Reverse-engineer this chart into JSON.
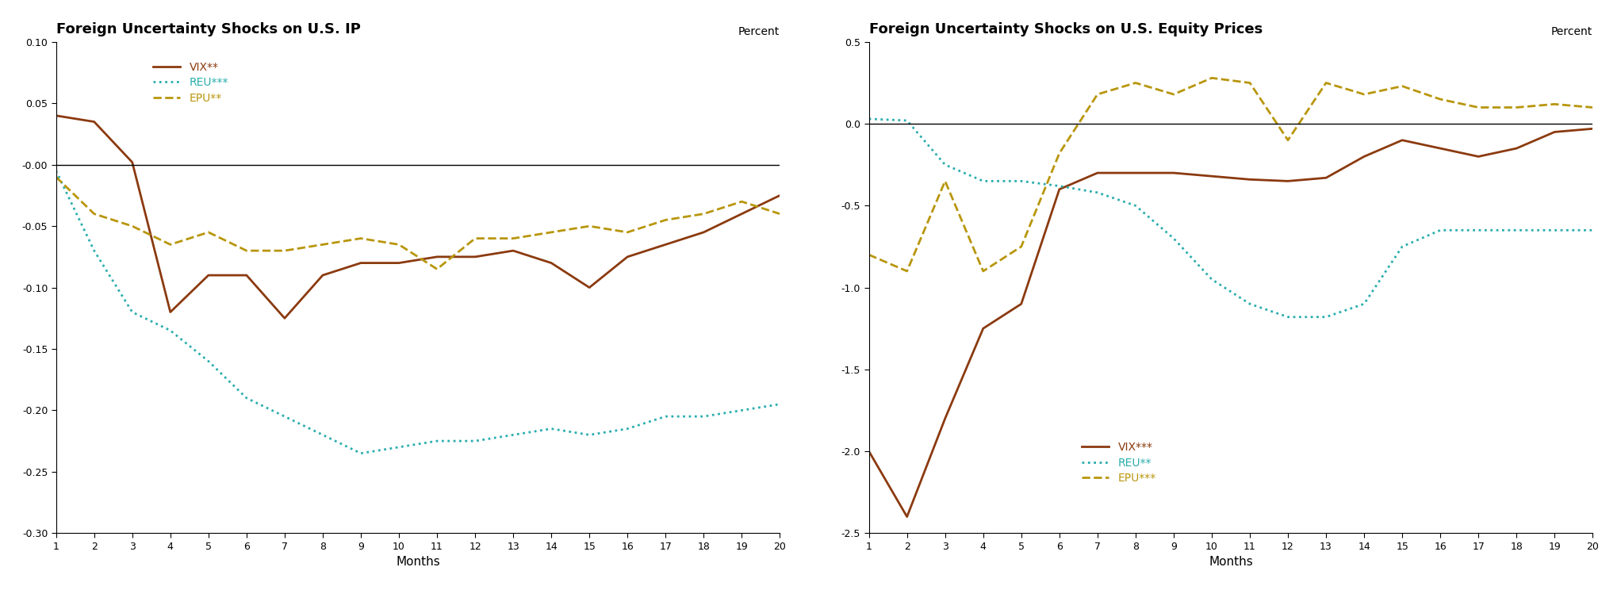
{
  "chart1": {
    "title": "Foreign Uncertainty Shocks on U.S. IP",
    "ylabel": "Percent",
    "xlabel": "Months",
    "months": [
      1,
      2,
      3,
      4,
      5,
      6,
      7,
      8,
      9,
      10,
      11,
      12,
      13,
      14,
      15,
      16,
      17,
      18,
      19,
      20
    ],
    "vix": [
      0.04,
      0.035,
      0.002,
      -0.12,
      -0.09,
      -0.09,
      -0.125,
      -0.09,
      -0.08,
      -0.08,
      -0.075,
      -0.075,
      -0.07,
      -0.08,
      -0.1,
      -0.075,
      -0.065,
      -0.055,
      -0.04,
      -0.025
    ],
    "reu": [
      -0.005,
      -0.07,
      -0.12,
      -0.135,
      -0.16,
      -0.19,
      -0.205,
      -0.22,
      -0.235,
      -0.23,
      -0.225,
      -0.225,
      -0.22,
      -0.215,
      -0.22,
      -0.215,
      -0.205,
      -0.205,
      -0.2,
      -0.195
    ],
    "epu": [
      -0.01,
      -0.04,
      -0.05,
      -0.065,
      -0.055,
      -0.07,
      -0.07,
      -0.065,
      -0.06,
      -0.065,
      -0.085,
      -0.06,
      -0.06,
      -0.055,
      -0.05,
      -0.055,
      -0.045,
      -0.04,
      -0.03,
      -0.04
    ],
    "ylim": [
      -0.3,
      0.1
    ],
    "yticks": [
      0.1,
      0.05,
      -0.0,
      -0.05,
      -0.1,
      -0.15,
      -0.2,
      -0.25,
      -0.3
    ],
    "ytick_labels": [
      "0.10",
      "0.05",
      "-0.00",
      "-0.05",
      "-0.10",
      "-0.15",
      "-0.20",
      "-0.25",
      "-0.30"
    ],
    "legend_vix": "VIX**",
    "legend_reu": "REU***",
    "legend_epu": "EPU**"
  },
  "chart2": {
    "title": "Foreign Uncertainty Shocks on U.S. Equity Prices",
    "ylabel": "Percent",
    "xlabel": "Months",
    "months": [
      1,
      2,
      3,
      4,
      5,
      6,
      7,
      8,
      9,
      10,
      11,
      12,
      13,
      14,
      15,
      16,
      17,
      18,
      19,
      20
    ],
    "vix": [
      -2.0,
      -2.4,
      -1.8,
      -1.25,
      -1.1,
      -0.4,
      -0.3,
      -0.3,
      -0.3,
      -0.32,
      -0.34,
      -0.35,
      -0.33,
      -0.2,
      -0.1,
      -0.15,
      -0.2,
      -0.15,
      -0.05,
      -0.03
    ],
    "reu": [
      0.03,
      0.02,
      -0.25,
      -0.35,
      -0.35,
      -0.38,
      -0.42,
      -0.5,
      -0.7,
      -0.95,
      -1.1,
      -1.18,
      -1.18,
      -1.1,
      -0.75,
      -0.65,
      -0.65,
      -0.65,
      -0.65,
      -0.65
    ],
    "epu": [
      -0.8,
      -0.9,
      -0.35,
      -0.9,
      -0.75,
      -0.18,
      0.18,
      0.25,
      0.18,
      0.28,
      0.25,
      -0.1,
      0.25,
      0.18,
      0.23,
      0.15,
      0.1,
      0.1,
      0.12,
      0.1
    ],
    "ylim": [
      -2.5,
      0.5
    ],
    "yticks": [
      0.5,
      0.0,
      -0.5,
      -1.0,
      -1.5,
      -2.0,
      -2.5
    ],
    "ytick_labels": [
      "0.5",
      "0.0",
      "-0.5",
      "-1.0",
      "-1.5",
      "-2.0",
      "-2.5"
    ],
    "legend_vix": "VIX***",
    "legend_reu": "REU**",
    "legend_epu": "EPU***"
  },
  "colors": {
    "vix": "#8B3A0F",
    "reu": "#2AADAD",
    "epu": "#B8960C"
  }
}
